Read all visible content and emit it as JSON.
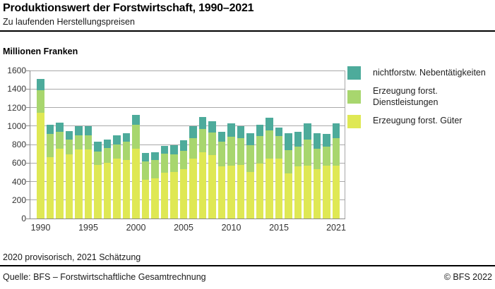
{
  "header": {
    "title": "Produktionswert der Forstwirtschaft, 1990–2021",
    "subtitle": "Zu laufenden Herstellungspreisen"
  },
  "chart_data": {
    "type": "bar",
    "stacked": true,
    "unit_label": "Millionen Franken",
    "x": [
      1990,
      1991,
      1992,
      1993,
      1994,
      1995,
      1996,
      1997,
      1998,
      1999,
      2000,
      2001,
      2002,
      2003,
      2004,
      2005,
      2006,
      2007,
      2008,
      2009,
      2010,
      2011,
      2012,
      2013,
      2014,
      2015,
      2016,
      2017,
      2018,
      2019,
      2020,
      2021
    ],
    "x_tick_years": [
      1990,
      1995,
      2000,
      2005,
      2010,
      2015,
      2021
    ],
    "x_tick_labels": [
      "1990",
      "1995",
      "2000",
      "2005",
      "2010",
      "2015",
      "2021"
    ],
    "ylim": [
      0,
      1600
    ],
    "y_tick_step": 200,
    "y_ticks": [
      0,
      200,
      400,
      600,
      800,
      1000,
      1200,
      1400,
      1600
    ],
    "grid": "horizontal",
    "series": [
      {
        "key": "gueter",
        "name": "Erzeugung forst. Güter",
        "color": "#dfe854",
        "values": [
          1140,
          660,
          755,
          695,
          750,
          750,
          580,
          605,
          645,
          630,
          755,
          420,
          435,
          495,
          505,
          535,
          650,
          715,
          685,
          565,
          575,
          580,
          505,
          595,
          650,
          650,
          485,
          565,
          570,
          535,
          575,
          575
        ]
      },
      {
        "key": "dienstleistungen",
        "name": "Erzeugung forst. Dienstleistungen",
        "color": "#a8d66e",
        "values": [
          250,
          255,
          180,
          155,
          150,
          150,
          145,
          155,
          155,
          200,
          260,
          200,
          195,
          205,
          190,
          200,
          220,
          255,
          245,
          265,
          310,
          285,
          290,
          295,
          300,
          240,
          255,
          210,
          280,
          220,
          205,
          290
        ]
      },
      {
        "key": "nebentaetigkeiten",
        "name": "nichtforstw. Nebentätigkeiten",
        "color": "#4dab9b",
        "values": [
          120,
          95,
          105,
          95,
          95,
          100,
          105,
          95,
          100,
          90,
          105,
          85,
          90,
          85,
          95,
          110,
          125,
          130,
          125,
          110,
          140,
          130,
          125,
          125,
          140,
          90,
          180,
          165,
          180,
          170,
          135,
          165
        ]
      }
    ],
    "legend": {
      "position": "right",
      "items": [
        {
          "label": "nichtforstw. Nebentätigkeiten",
          "color": "#4dab9b"
        },
        {
          "label": "Erzeugung forst. Dienstleistungen",
          "color": "#a8d66e"
        },
        {
          "label": "Erzeugung forst. Güter",
          "color": "#dfe854"
        }
      ]
    }
  },
  "footnote": "2020 provisorisch, 2021 Schätzung",
  "footer": {
    "source": "Quelle: BFS – Forstwirtschaftliche Gesamtrechnung",
    "copyright": "© BFS 2022"
  }
}
